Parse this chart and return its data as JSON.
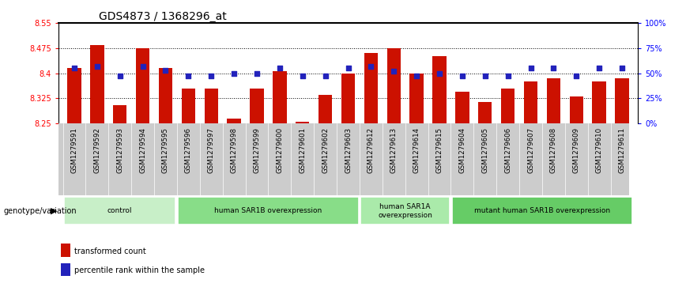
{
  "title": "GDS4873 / 1368296_at",
  "samples": [
    "GSM1279591",
    "GSM1279592",
    "GSM1279593",
    "GSM1279594",
    "GSM1279595",
    "GSM1279596",
    "GSM1279597",
    "GSM1279598",
    "GSM1279599",
    "GSM1279600",
    "GSM1279601",
    "GSM1279602",
    "GSM1279603",
    "GSM1279612",
    "GSM1279613",
    "GSM1279614",
    "GSM1279615",
    "GSM1279604",
    "GSM1279605",
    "GSM1279606",
    "GSM1279607",
    "GSM1279608",
    "GSM1279609",
    "GSM1279610",
    "GSM1279611"
  ],
  "bar_values": [
    8.415,
    8.485,
    8.305,
    8.475,
    8.415,
    8.355,
    8.355,
    8.265,
    8.355,
    8.405,
    8.255,
    8.335,
    8.4,
    8.46,
    8.475,
    8.4,
    8.45,
    8.345,
    8.315,
    8.355,
    8.375,
    8.385,
    8.33,
    8.375,
    8.385
  ],
  "dot_values": [
    55,
    57,
    47,
    57,
    53,
    47,
    47,
    50,
    50,
    55,
    47,
    47,
    55,
    57,
    52,
    47,
    50,
    47,
    47,
    47,
    55,
    55,
    47,
    55,
    55
  ],
  "ylim": [
    8.25,
    8.55
  ],
  "yticks_left": [
    8.25,
    8.325,
    8.4,
    8.475,
    8.55
  ],
  "yticks_right": [
    0,
    25,
    50,
    75,
    100
  ],
  "bar_color": "#cc1100",
  "dot_color": "#2222bb",
  "groups": [
    {
      "label": "control",
      "start": 0,
      "end": 4,
      "color": "#c8efc8"
    },
    {
      "label": "human SAR1B overexpression",
      "start": 5,
      "end": 12,
      "color": "#88dd88"
    },
    {
      "label": "human SAR1A\noverexpression",
      "start": 13,
      "end": 16,
      "color": "#aaeaaa"
    },
    {
      "label": "mutant human SAR1B overexpression",
      "start": 17,
      "end": 24,
      "color": "#66cc66"
    }
  ],
  "legend_items": [
    {
      "color": "#cc1100",
      "label": "transformed count"
    },
    {
      "color": "#2222bb",
      "label": "percentile rank within the sample"
    }
  ],
  "title_fontsize": 10,
  "tick_fontsize": 7,
  "bar_width": 0.6
}
